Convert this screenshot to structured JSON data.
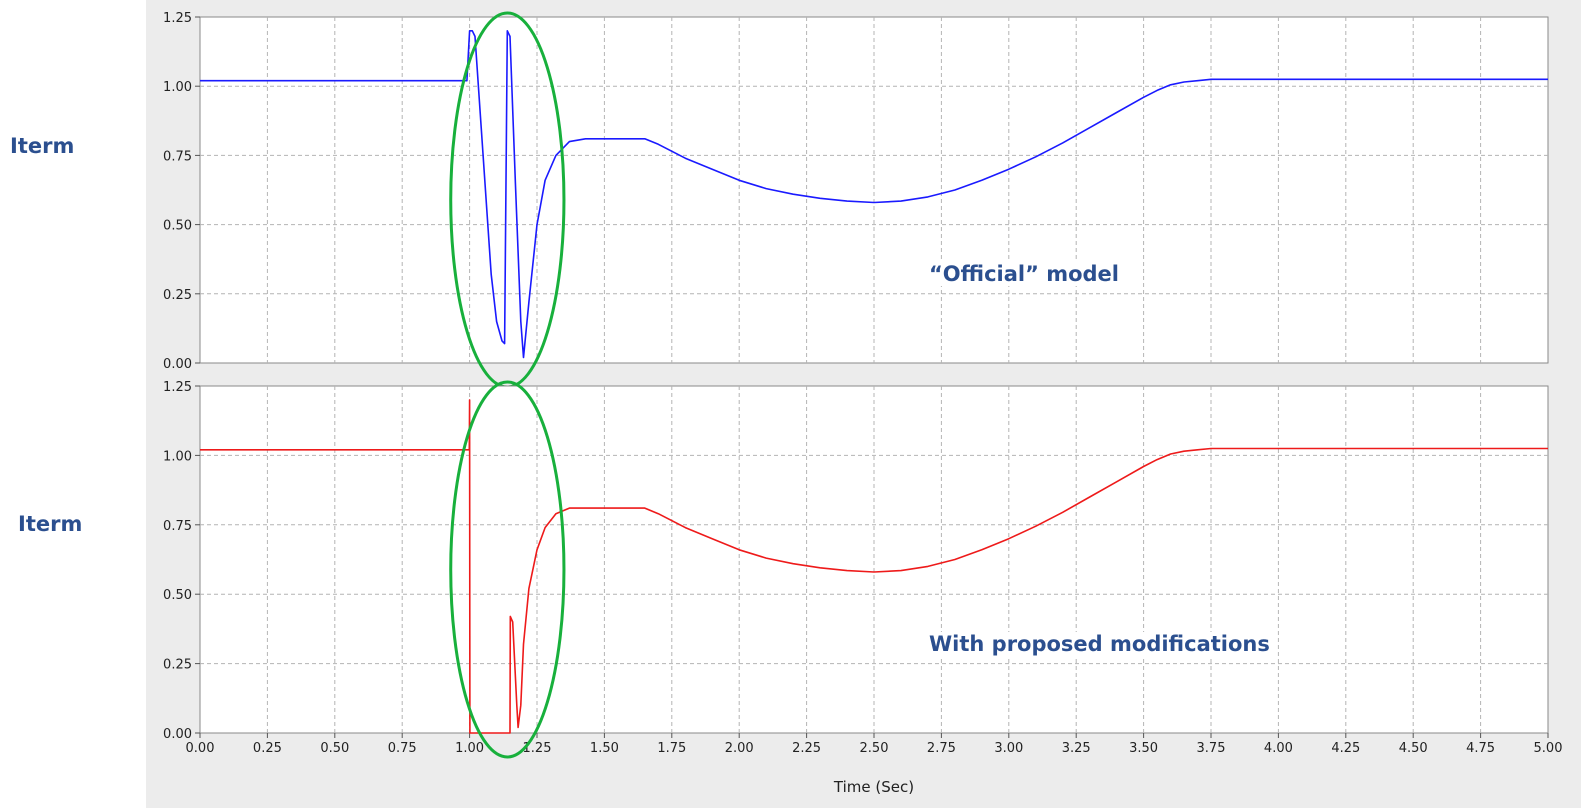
{
  "labels": {
    "top_ylabel": "Iterm",
    "bottom_ylabel": "Iterm",
    "top_note": "“Official” model",
    "bottom_note": "With proposed modifications"
  },
  "colors": {
    "panel_bg": "#ececec",
    "plot_bg": "#ffffff",
    "grid": "#b4b4b4",
    "ellipse": "#18b03c",
    "label_text": "#2b4f8f"
  },
  "chart_data": [
    {
      "type": "line",
      "title": "",
      "xlabel": "",
      "ylabel": "Iterm",
      "xlim": [
        0,
        5
      ],
      "ylim": [
        0,
        1.25
      ],
      "grid": true,
      "annotation": "“Official” model",
      "highlight": "ellipse around transient 0.95–1.35 s",
      "yticks": [
        "0.00",
        "0.25",
        "0.50",
        "0.75",
        "1.00",
        "1.25"
      ],
      "series": [
        {
          "color": "#1a1aff",
          "x": [
            0,
            0.99,
            1.0,
            1.01,
            1.02,
            1.05,
            1.08,
            1.1,
            1.12,
            1.13,
            1.14,
            1.15,
            1.17,
            1.19,
            1.2,
            1.22,
            1.25,
            1.28,
            1.32,
            1.37,
            1.43,
            1.5,
            1.6,
            1.65,
            1.7,
            1.8,
            1.9,
            2.0,
            2.1,
            2.2,
            2.3,
            2.4,
            2.5,
            2.6,
            2.7,
            2.8,
            2.9,
            3.0,
            3.1,
            3.2,
            3.3,
            3.4,
            3.5,
            3.55,
            3.6,
            3.65,
            3.7,
            3.75,
            3.8,
            4.0,
            4.5,
            5.0
          ],
          "y": [
            1.02,
            1.02,
            1.2,
            1.2,
            1.18,
            0.75,
            0.32,
            0.15,
            0.08,
            0.07,
            1.2,
            1.18,
            0.65,
            0.15,
            0.02,
            0.22,
            0.5,
            0.66,
            0.75,
            0.8,
            0.81,
            0.81,
            0.81,
            0.81,
            0.79,
            0.74,
            0.7,
            0.66,
            0.63,
            0.61,
            0.595,
            0.585,
            0.58,
            0.585,
            0.6,
            0.625,
            0.66,
            0.7,
            0.745,
            0.795,
            0.85,
            0.905,
            0.96,
            0.985,
            1.005,
            1.015,
            1.02,
            1.025,
            1.025,
            1.025,
            1.025,
            1.025
          ]
        }
      ]
    },
    {
      "type": "line",
      "title": "",
      "xlabel": "Time (Sec)",
      "ylabel": "Iterm",
      "xlim": [
        0,
        5
      ],
      "ylim": [
        0,
        1.25
      ],
      "grid": true,
      "annotation": "With proposed modifications",
      "highlight": "ellipse around transient 0.95–1.35 s",
      "xticks": [
        "0.00",
        "0.25",
        "0.50",
        "0.75",
        "1.00",
        "1.25",
        "1.50",
        "1.75",
        "2.00",
        "2.25",
        "2.50",
        "2.75",
        "3.00",
        "3.25",
        "3.50",
        "3.75",
        "4.00",
        "4.25",
        "4.50",
        "4.75",
        "5.00"
      ],
      "yticks": [
        "0.00",
        "0.25",
        "0.50",
        "0.75",
        "1.00",
        "1.25"
      ],
      "series": [
        {
          "color": "#ee1a1a",
          "x": [
            0,
            0.999,
            1.0,
            1.001,
            1.15,
            1.151,
            1.16,
            1.175,
            1.18,
            1.19,
            1.2,
            1.22,
            1.25,
            1.28,
            1.32,
            1.37,
            1.43,
            1.5,
            1.6,
            1.65,
            1.7,
            1.8,
            1.9,
            2.0,
            2.1,
            2.2,
            2.3,
            2.4,
            2.5,
            2.6,
            2.7,
            2.8,
            2.9,
            3.0,
            3.1,
            3.2,
            3.3,
            3.4,
            3.5,
            3.55,
            3.6,
            3.65,
            3.7,
            3.75,
            3.8,
            4.0,
            4.5,
            5.0
          ],
          "y": [
            1.02,
            1.02,
            1.2,
            0.0,
            0.0,
            0.42,
            0.4,
            0.1,
            0.02,
            0.1,
            0.32,
            0.52,
            0.66,
            0.74,
            0.79,
            0.81,
            0.81,
            0.81,
            0.81,
            0.81,
            0.79,
            0.74,
            0.7,
            0.66,
            0.63,
            0.61,
            0.595,
            0.585,
            0.58,
            0.585,
            0.6,
            0.625,
            0.66,
            0.7,
            0.745,
            0.795,
            0.85,
            0.905,
            0.96,
            0.985,
            1.005,
            1.015,
            1.02,
            1.025,
            1.025,
            1.025,
            1.025,
            1.025
          ]
        }
      ]
    }
  ]
}
